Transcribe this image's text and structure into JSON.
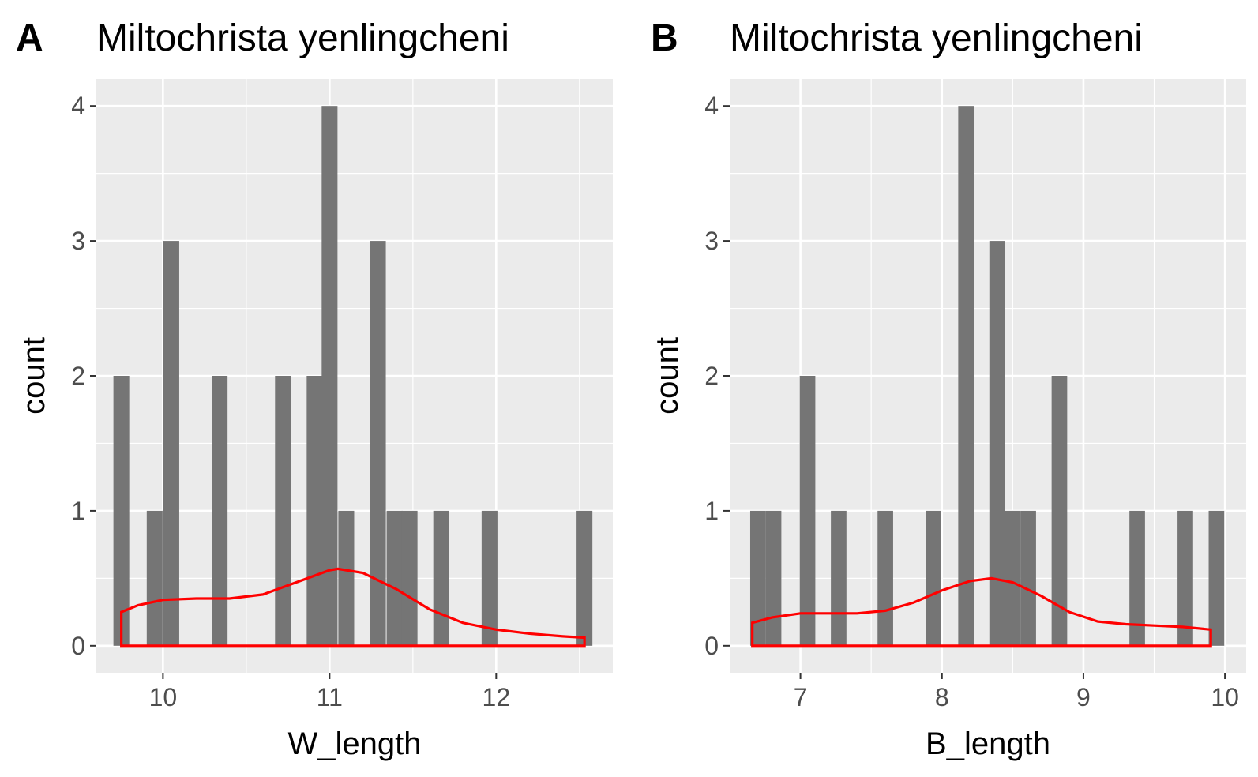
{
  "chart_data": [
    {
      "type": "bar",
      "panel_label": "A",
      "title": "Miltochrista yenlingcheni",
      "xlabel": "W_length",
      "ylabel": "count",
      "xlim": [
        9.6,
        12.7
      ],
      "ylim": [
        -0.2,
        4.2
      ],
      "x_ticks": [
        10,
        11,
        12
      ],
      "y_ticks": [
        0,
        1,
        2,
        3,
        4
      ],
      "bar_color": "#757575",
      "panel_background": "#ebebeb",
      "grid": true,
      "bin_width": 0.095,
      "bins": [
        {
          "x": 9.75,
          "count": 2
        },
        {
          "x": 9.95,
          "count": 1
        },
        {
          "x": 10.05,
          "count": 3
        },
        {
          "x": 10.34,
          "count": 2
        },
        {
          "x": 10.72,
          "count": 2
        },
        {
          "x": 10.91,
          "count": 2
        },
        {
          "x": 11.0,
          "count": 4
        },
        {
          "x": 11.1,
          "count": 1
        },
        {
          "x": 11.29,
          "count": 3
        },
        {
          "x": 11.39,
          "count": 1
        },
        {
          "x": 11.48,
          "count": 1
        },
        {
          "x": 11.67,
          "count": 1
        },
        {
          "x": 11.96,
          "count": 1
        },
        {
          "x": 12.53,
          "count": 1
        }
      ],
      "density": {
        "color": "#ff0000",
        "x": [
          9.75,
          9.85,
          10.0,
          10.2,
          10.4,
          10.6,
          10.8,
          11.0,
          11.05,
          11.2,
          11.4,
          11.6,
          11.8,
          12.0,
          12.2,
          12.4,
          12.53
        ],
        "y": [
          0.25,
          0.3,
          0.34,
          0.35,
          0.35,
          0.38,
          0.47,
          0.56,
          0.57,
          0.54,
          0.42,
          0.27,
          0.17,
          0.12,
          0.09,
          0.07,
          0.06
        ]
      }
    },
    {
      "type": "bar",
      "panel_label": "B",
      "title": "Miltochrista yenlingcheni",
      "xlabel": "B_length",
      "ylabel": "count",
      "xlim": [
        6.5,
        10.15
      ],
      "ylim": [
        -0.2,
        4.2
      ],
      "x_ticks": [
        7,
        8,
        9,
        10
      ],
      "y_ticks": [
        0,
        1,
        2,
        3,
        4
      ],
      "bar_color": "#757575",
      "panel_background": "#ebebeb",
      "grid": true,
      "bin_width": 0.11,
      "bins": [
        {
          "x": 6.7,
          "count": 1
        },
        {
          "x": 6.81,
          "count": 1
        },
        {
          "x": 7.05,
          "count": 2
        },
        {
          "x": 7.27,
          "count": 1
        },
        {
          "x": 7.6,
          "count": 1
        },
        {
          "x": 7.94,
          "count": 1
        },
        {
          "x": 8.17,
          "count": 4
        },
        {
          "x": 8.39,
          "count": 3
        },
        {
          "x": 8.5,
          "count": 1
        },
        {
          "x": 8.61,
          "count": 1
        },
        {
          "x": 8.83,
          "count": 2
        },
        {
          "x": 9.38,
          "count": 1
        },
        {
          "x": 9.72,
          "count": 1
        },
        {
          "x": 9.94,
          "count": 1
        }
      ],
      "density": {
        "color": "#ff0000",
        "x": [
          6.66,
          6.8,
          7.0,
          7.2,
          7.4,
          7.6,
          7.8,
          8.0,
          8.2,
          8.35,
          8.5,
          8.7,
          8.9,
          9.1,
          9.3,
          9.5,
          9.7,
          9.9
        ],
        "y": [
          0.17,
          0.21,
          0.24,
          0.24,
          0.24,
          0.26,
          0.32,
          0.41,
          0.48,
          0.5,
          0.47,
          0.37,
          0.25,
          0.18,
          0.16,
          0.15,
          0.14,
          0.12
        ]
      }
    }
  ]
}
